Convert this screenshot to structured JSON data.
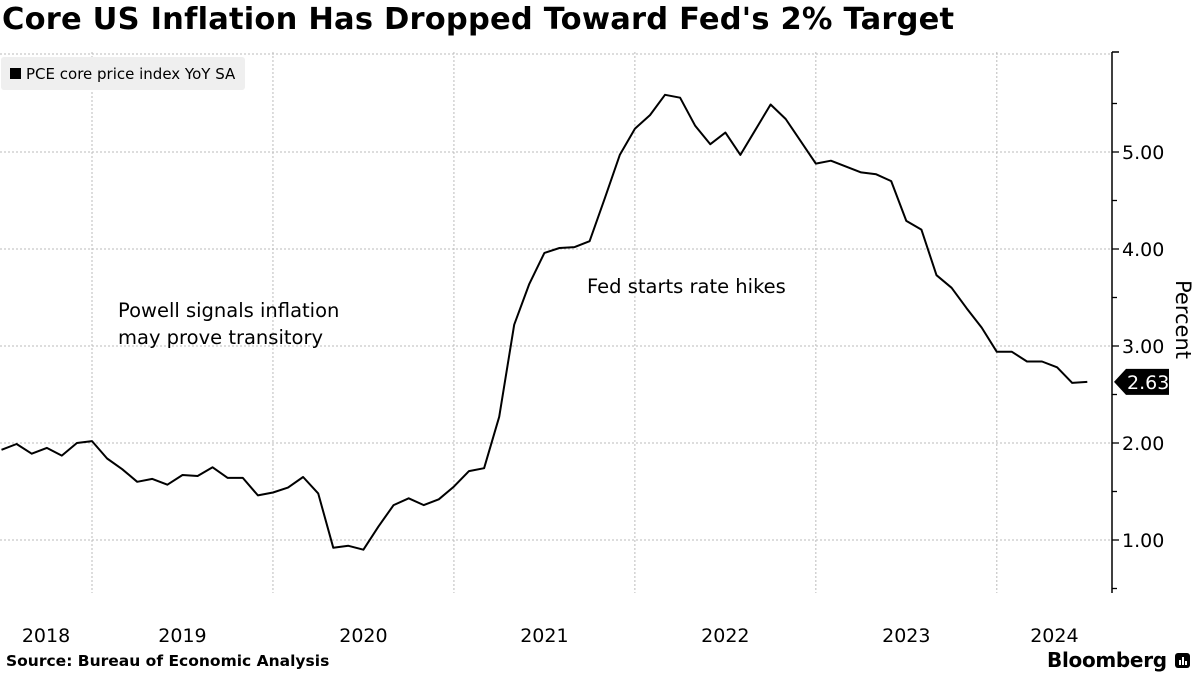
{
  "title": "Core US Inflation Has Dropped Toward Fed's 2% Target",
  "source": "Source:  Bureau of Economic Analysis",
  "brand": "Bloomberg",
  "chart_data": {
    "type": "line",
    "title": "Core US Inflation Has Dropped Toward Fed's 2% Target",
    "ylabel": "Percent",
    "xlabel": "",
    "ylim": [
      0.45,
      6.03
    ],
    "y_ticks": [
      "1.00",
      "2.00",
      "3.00",
      "4.00",
      "5.00"
    ],
    "y_axis_side": "right",
    "x_tick_labels": [
      "2018",
      "2019",
      "2020",
      "2021",
      "2022",
      "2023",
      "2024"
    ],
    "grid": true,
    "legend_position": "top-left",
    "line_color": "#000000",
    "last_value_label": "2.63",
    "annotations": [
      {
        "lines": [
          "Powell signals inflation",
          "may prove transitory"
        ]
      },
      {
        "lines": [
          "Fed starts rate hikes"
        ]
      }
    ],
    "series": [
      {
        "name": "PCE core price index YoY SA",
        "x": [
          "2018-06",
          "2018-07",
          "2018-08",
          "2018-09",
          "2018-10",
          "2018-11",
          "2018-12",
          "2019-01",
          "2019-02",
          "2019-03",
          "2019-04",
          "2019-05",
          "2019-06",
          "2019-07",
          "2019-08",
          "2019-09",
          "2019-10",
          "2019-11",
          "2019-12",
          "2020-01",
          "2020-02",
          "2020-03",
          "2020-04",
          "2020-05",
          "2020-06",
          "2020-07",
          "2020-08",
          "2020-09",
          "2020-10",
          "2020-11",
          "2020-12",
          "2021-01",
          "2021-02",
          "2021-03",
          "2021-04",
          "2021-05",
          "2021-06",
          "2021-07",
          "2021-08",
          "2021-09",
          "2021-10",
          "2021-11",
          "2021-12",
          "2022-01",
          "2022-02",
          "2022-03",
          "2022-04",
          "2022-05",
          "2022-06",
          "2022-07",
          "2022-08",
          "2022-09",
          "2022-10",
          "2022-11",
          "2022-12",
          "2023-01",
          "2023-02",
          "2023-03",
          "2023-04",
          "2023-05",
          "2023-06",
          "2023-07",
          "2023-08",
          "2023-09",
          "2023-10",
          "2023-11",
          "2023-12",
          "2024-01",
          "2024-02",
          "2024-03",
          "2024-04",
          "2024-05",
          "2024-06"
        ],
        "values": [
          1.93,
          1.99,
          1.89,
          1.95,
          1.87,
          2.0,
          2.02,
          1.84,
          1.73,
          1.6,
          1.63,
          1.57,
          1.67,
          1.66,
          1.75,
          1.64,
          1.64,
          1.46,
          1.49,
          1.54,
          1.65,
          1.48,
          0.92,
          0.94,
          0.9,
          1.14,
          1.36,
          1.43,
          1.36,
          1.42,
          1.55,
          1.71,
          1.74,
          2.27,
          3.22,
          3.64,
          3.96,
          4.01,
          4.02,
          4.08,
          4.52,
          4.97,
          5.24,
          5.38,
          5.59,
          5.56,
          5.27,
          5.08,
          5.2,
          4.97,
          5.23,
          5.49,
          5.34,
          5.11,
          4.88,
          4.91,
          4.85,
          4.79,
          4.77,
          4.7,
          4.29,
          4.2,
          3.73,
          3.6,
          3.39,
          3.19,
          2.94,
          2.94,
          2.84,
          2.84,
          2.78,
          2.62,
          2.63
        ]
      }
    ]
  }
}
